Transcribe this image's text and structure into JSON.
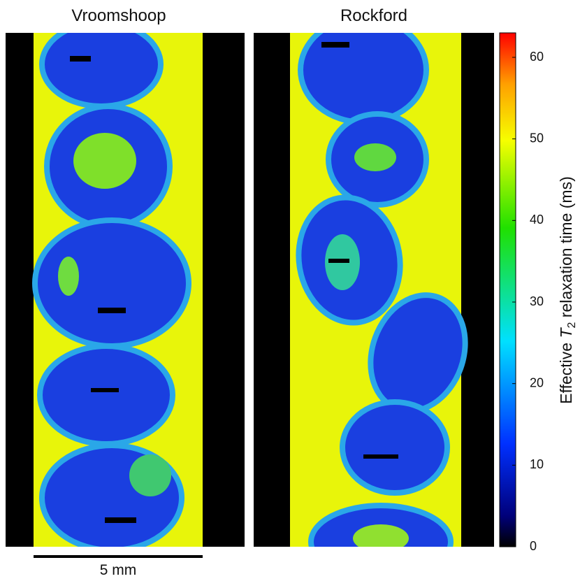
{
  "panels": [
    {
      "title": "Vroomshoop"
    },
    {
      "title": "Rockford"
    }
  ],
  "scale_bar": {
    "label": "5 mm"
  },
  "colorbar": {
    "label": {
      "prefix": "Effective",
      "symbol": "T",
      "subscript": "2",
      "suffix": "relaxation time (ms)"
    },
    "lim": [
      0,
      63
    ],
    "ticks": [
      0,
      10,
      20,
      30,
      40,
      50,
      60
    ]
  }
}
